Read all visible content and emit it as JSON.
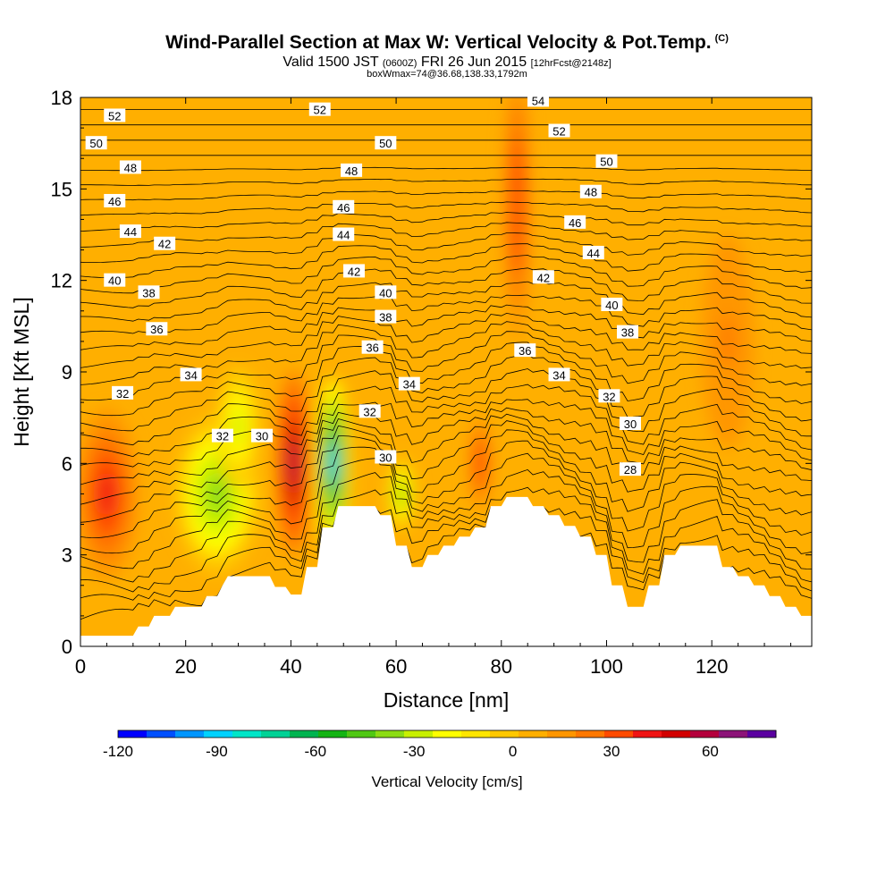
{
  "chart_data": {
    "type": "contour",
    "title": "Wind-Parallel Section at Max W: Vertical Velocity & Pot.Temp.",
    "title_mark": "(C)",
    "subtitle_main": "Valid 1500 JST",
    "subtitle_utc": "(0600Z)",
    "subtitle_date": "FRI 26 Jun 2015",
    "subtitle_fcst": "[12hrFcst@2148z]",
    "box_info": "boxWmax=74@36.68,138.33,1792m",
    "xlabel": "Distance [nm]",
    "ylabel": "Height [Kft MSL]",
    "xlim": [
      0,
      139
    ],
    "ylim": [
      0,
      18
    ],
    "x_ticks": [
      "0",
      "20",
      "40",
      "60",
      "80",
      "100",
      "120"
    ],
    "y_ticks": [
      "0",
      "3",
      "6",
      "9",
      "12",
      "15",
      "18"
    ],
    "colorbar": {
      "label": "Vertical Velocity [cm/s]",
      "ticks": [
        "-120",
        "-90",
        "-60",
        "-30",
        "0",
        "30",
        "60"
      ],
      "range": [
        -120,
        80
      ],
      "colors": [
        "#0000ff",
        "#0050ff",
        "#0096ff",
        "#00d2ff",
        "#00e6c8",
        "#00d296",
        "#00b450",
        "#14b414",
        "#50c814",
        "#8cdc14",
        "#c8f000",
        "#ffff00",
        "#ffe600",
        "#ffc800",
        "#ffaf00",
        "#ff9600",
        "#ff7800",
        "#ff4b00",
        "#f01414",
        "#d20000",
        "#b4003c",
        "#8c1478",
        "#5a00a0"
      ]
    },
    "terrain_kft": [
      [
        0,
        0.35
      ],
      [
        10,
        0.35
      ],
      [
        11,
        0.65
      ],
      [
        13,
        0.65
      ],
      [
        14,
        1.0
      ],
      [
        17,
        1.0
      ],
      [
        18,
        1.3
      ],
      [
        23,
        1.3
      ],
      [
        24,
        1.65
      ],
      [
        26,
        1.65
      ],
      [
        27,
        2.0
      ],
      [
        28,
        2.3
      ],
      [
        36,
        2.3
      ],
      [
        37,
        1.95
      ],
      [
        39,
        1.95
      ],
      [
        40,
        1.7
      ],
      [
        42,
        1.7
      ],
      [
        43,
        2.6
      ],
      [
        45,
        2.6
      ],
      [
        46,
        3.9
      ],
      [
        48,
        3.9
      ],
      [
        49,
        4.6
      ],
      [
        56,
        4.6
      ],
      [
        57,
        4.3
      ],
      [
        59,
        4.3
      ],
      [
        60,
        3.3
      ],
      [
        62,
        3.3
      ],
      [
        63,
        2.6
      ],
      [
        65,
        2.6
      ],
      [
        66,
        3.0
      ],
      [
        68,
        3.0
      ],
      [
        69,
        3.3
      ],
      [
        71,
        3.3
      ],
      [
        72,
        3.6
      ],
      [
        74,
        3.6
      ],
      [
        75,
        3.9
      ],
      [
        77,
        3.9
      ],
      [
        78,
        4.6
      ],
      [
        80,
        4.6
      ],
      [
        81,
        4.9
      ],
      [
        85,
        4.9
      ],
      [
        86,
        4.6
      ],
      [
        88,
        4.6
      ],
      [
        89,
        4.3
      ],
      [
        91,
        4.3
      ],
      [
        92,
        3.95
      ],
      [
        94,
        3.95
      ],
      [
        95,
        3.6
      ],
      [
        97,
        3.6
      ],
      [
        98,
        3.0
      ],
      [
        100,
        3.0
      ],
      [
        101,
        2.0
      ],
      [
        103,
        2.0
      ],
      [
        104,
        1.3
      ],
      [
        107,
        1.3
      ],
      [
        108,
        2.0
      ],
      [
        110,
        2.0
      ],
      [
        111,
        3.0
      ],
      [
        113,
        3.0
      ],
      [
        114,
        3.3
      ],
      [
        121,
        3.3
      ],
      [
        122,
        2.6
      ],
      [
        124,
        2.6
      ],
      [
        125,
        2.3
      ],
      [
        127,
        2.3
      ],
      [
        128,
        2.0
      ],
      [
        130,
        2.0
      ],
      [
        131,
        1.65
      ],
      [
        133,
        1.65
      ],
      [
        134,
        1.3
      ],
      [
        136,
        1.3
      ],
      [
        137,
        1.0
      ],
      [
        139,
        1.0
      ]
    ],
    "theta_labels": [
      {
        "v": "52",
        "x": 6.5,
        "y": 17.4
      },
      {
        "v": "52",
        "x": 45.5,
        "y": 17.6
      },
      {
        "v": "54",
        "x": 87,
        "y": 17.9
      },
      {
        "v": "52",
        "x": 91,
        "y": 16.9
      },
      {
        "v": "50",
        "x": 3,
        "y": 16.5
      },
      {
        "v": "50",
        "x": 58,
        "y": 16.5
      },
      {
        "v": "50",
        "x": 100,
        "y": 15.9
      },
      {
        "v": "48",
        "x": 9.5,
        "y": 15.7
      },
      {
        "v": "48",
        "x": 51.5,
        "y": 15.6
      },
      {
        "v": "48",
        "x": 97,
        "y": 14.9
      },
      {
        "v": "46",
        "x": 6.5,
        "y": 14.6
      },
      {
        "v": "46",
        "x": 50,
        "y": 14.4
      },
      {
        "v": "46",
        "x": 94,
        "y": 13.9
      },
      {
        "v": "44",
        "x": 9.5,
        "y": 13.6
      },
      {
        "v": "44",
        "x": 50,
        "y": 13.5
      },
      {
        "v": "44",
        "x": 97.5,
        "y": 12.9
      },
      {
        "v": "42",
        "x": 16,
        "y": 13.2
      },
      {
        "v": "42",
        "x": 52,
        "y": 12.3
      },
      {
        "v": "42",
        "x": 88,
        "y": 12.1
      },
      {
        "v": "40",
        "x": 6.5,
        "y": 12.0
      },
      {
        "v": "40",
        "x": 58,
        "y": 11.6
      },
      {
        "v": "40",
        "x": 101,
        "y": 11.2
      },
      {
        "v": "38",
        "x": 13,
        "y": 11.6
      },
      {
        "v": "38",
        "x": 58,
        "y": 10.8
      },
      {
        "v": "38",
        "x": 104,
        "y": 10.3
      },
      {
        "v": "36",
        "x": 14.5,
        "y": 10.4
      },
      {
        "v": "36",
        "x": 55.5,
        "y": 9.8
      },
      {
        "v": "36",
        "x": 84.5,
        "y": 9.7
      },
      {
        "v": "34",
        "x": 21,
        "y": 8.9
      },
      {
        "v": "34",
        "x": 62.5,
        "y": 8.6
      },
      {
        "v": "34",
        "x": 91,
        "y": 8.9
      },
      {
        "v": "32",
        "x": 8,
        "y": 8.3
      },
      {
        "v": "32",
        "x": 27,
        "y": 6.9
      },
      {
        "v": "32",
        "x": 55,
        "y": 7.7
      },
      {
        "v": "32",
        "x": 100.5,
        "y": 8.2
      },
      {
        "v": "30",
        "x": 34.5,
        "y": 6.9
      },
      {
        "v": "30",
        "x": 58,
        "y": 6.2
      },
      {
        "v": "30",
        "x": 104.5,
        "y": 7.3
      },
      {
        "v": "28",
        "x": 104.5,
        "y": 5.8
      }
    ],
    "w_blobs_cm_s": [
      {
        "x": 5,
        "y": 5.0,
        "rx": 6,
        "ry": 2.8,
        "w": 40
      },
      {
        "x": 26,
        "y": 5.0,
        "rx": 8,
        "ry": 2.6,
        "w": -40
      },
      {
        "x": 30,
        "y": 7.2,
        "rx": 4,
        "ry": 2.0,
        "w": -30
      },
      {
        "x": 40.5,
        "y": 6.0,
        "rx": 3.2,
        "ry": 3.0,
        "w": 60
      },
      {
        "x": 48,
        "y": 6.0,
        "rx": 3.0,
        "ry": 2.8,
        "w": -90
      },
      {
        "x": 61,
        "y": 5.0,
        "rx": 2.5,
        "ry": 1.2,
        "w": -40
      },
      {
        "x": 76,
        "y": 6.0,
        "rx": 2.0,
        "ry": 1.6,
        "w": 35
      },
      {
        "x": 83,
        "y": 14.5,
        "rx": 2.5,
        "ry": 4.5,
        "w": 35
      },
      {
        "x": 123,
        "y": 10.0,
        "rx": 5,
        "ry": 3.5,
        "w": 20
      }
    ]
  }
}
